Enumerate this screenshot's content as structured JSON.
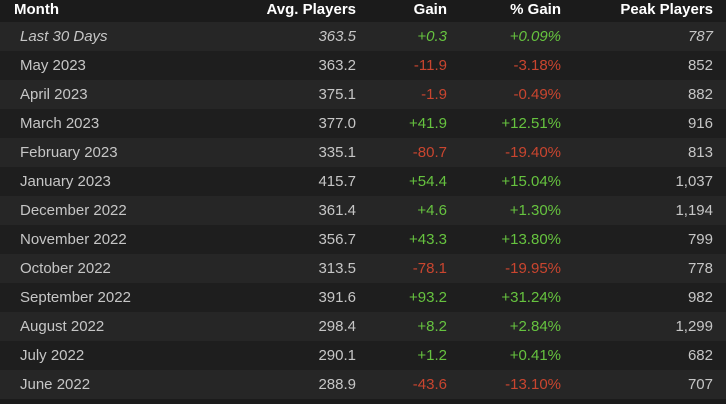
{
  "table": {
    "header": [
      "Month",
      "Avg. Players",
      "Gain",
      "% Gain",
      "Peak Players"
    ],
    "rows": [
      [
        "Last 30 Days",
        "363.5",
        "+0.3",
        "+0.09%",
        "787"
      ],
      [
        "May 2023",
        "363.2",
        "-11.9",
        "-3.18%",
        "852"
      ],
      [
        "April 2023",
        "375.1",
        "-1.9",
        "-0.49%",
        "882"
      ],
      [
        "March 2023",
        "377.0",
        "+41.9",
        "+12.51%",
        "916"
      ],
      [
        "February 2023",
        "335.1",
        "-80.7",
        "-19.40%",
        "813"
      ],
      [
        "January 2023",
        "415.7",
        "+54.4",
        "+15.04%",
        "1,037"
      ],
      [
        "December 2022",
        "361.4",
        "+4.6",
        "+1.30%",
        "1,194"
      ],
      [
        "November 2022",
        "356.7",
        "+43.3",
        "+13.80%",
        "799"
      ],
      [
        "October 2022",
        "313.5",
        "-78.1",
        "-19.95%",
        "778"
      ],
      [
        "September 2022",
        "391.6",
        "+93.2",
        "+31.24%",
        "982"
      ],
      [
        "August 2022",
        "298.4",
        "+8.2",
        "+2.84%",
        "1,299"
      ],
      [
        "July 2022",
        "290.1",
        "+1.2",
        "+0.41%",
        "682"
      ],
      [
        "June 2022",
        "288.9",
        "-43.6",
        "-13.10%",
        "707"
      ]
    ]
  }
}
